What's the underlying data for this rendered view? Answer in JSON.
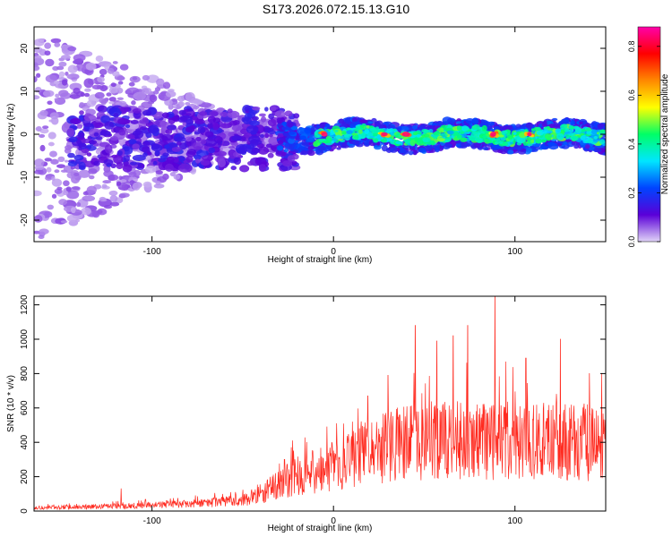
{
  "title": "S173.2026.072.15.13.G10",
  "chart_data": [
    {
      "type": "heatmap",
      "xlabel": "Height of straight line (km)",
      "ylabel": "Frequency (Hz)",
      "xlim": [
        -165,
        150
      ],
      "ylim": [
        -25,
        25
      ],
      "xticks": [
        -100,
        0,
        100
      ],
      "yticks": [
        -20,
        -10,
        0,
        10,
        20
      ],
      "colorbar": {
        "label": "Normalized spectral amplitude",
        "range": [
          0,
          0.88
        ],
        "ticks": [
          "0.0",
          "0.2",
          "0.4",
          "0.6",
          "0.8"
        ],
        "colors": [
          "#e0d4f7",
          "#5a00d8",
          "#0044ff",
          "#00e6ff",
          "#00ff66",
          "#ffff00",
          "#ff8800",
          "#ff0000",
          "#ff00aa"
        ]
      },
      "features": [
        {
          "x_from": -165,
          "x_to": -30,
          "pattern": "diffuse scattered energy",
          "freq_range": [
            -25,
            25
          ]
        },
        {
          "x_from": -30,
          "x_to": 150,
          "pattern": "narrow band near 0 Hz",
          "freq_center": 0,
          "peak_x": [
            -5,
            28,
            40,
            88,
            108
          ],
          "peak_amplitude": 0.85
        }
      ]
    },
    {
      "type": "line",
      "xlabel": "Height of straight line (km)",
      "ylabel": "SNR (10 * v/v)",
      "xlim": [
        -165,
        150
      ],
      "ylim": [
        0,
        1250
      ],
      "xticks": [
        -100,
        0,
        100
      ],
      "yticks": [
        0,
        200,
        400,
        600,
        800,
        1000,
        1200
      ],
      "color": "#ff2a1f",
      "baseline": [
        {
          "x": -165,
          "y": 18
        },
        {
          "x": -120,
          "y": 28
        },
        {
          "x": -80,
          "y": 40
        },
        {
          "x": -50,
          "y": 60
        },
        {
          "x": -40,
          "y": 100
        },
        {
          "x": -30,
          "y": 150
        },
        {
          "x": -20,
          "y": 200
        },
        {
          "x": 0,
          "y": 250
        },
        {
          "x": 20,
          "y": 340
        },
        {
          "x": 40,
          "y": 390
        },
        {
          "x": 60,
          "y": 400
        },
        {
          "x": 100,
          "y": 400
        },
        {
          "x": 150,
          "y": 380
        }
      ],
      "peaks": [
        {
          "x": -117,
          "y": 130
        },
        {
          "x": -27,
          "y": 300
        },
        {
          "x": -22,
          "y": 350
        },
        {
          "x": 19,
          "y": 670
        },
        {
          "x": 30,
          "y": 790
        },
        {
          "x": 45,
          "y": 1080
        },
        {
          "x": 57,
          "y": 990
        },
        {
          "x": 66,
          "y": 1020
        },
        {
          "x": 74,
          "y": 1080
        },
        {
          "x": 89,
          "y": 1250
        },
        {
          "x": 95,
          "y": 870
        },
        {
          "x": 106,
          "y": 890
        },
        {
          "x": 125,
          "y": 1000
        },
        {
          "x": 141,
          "y": 800
        }
      ]
    }
  ]
}
